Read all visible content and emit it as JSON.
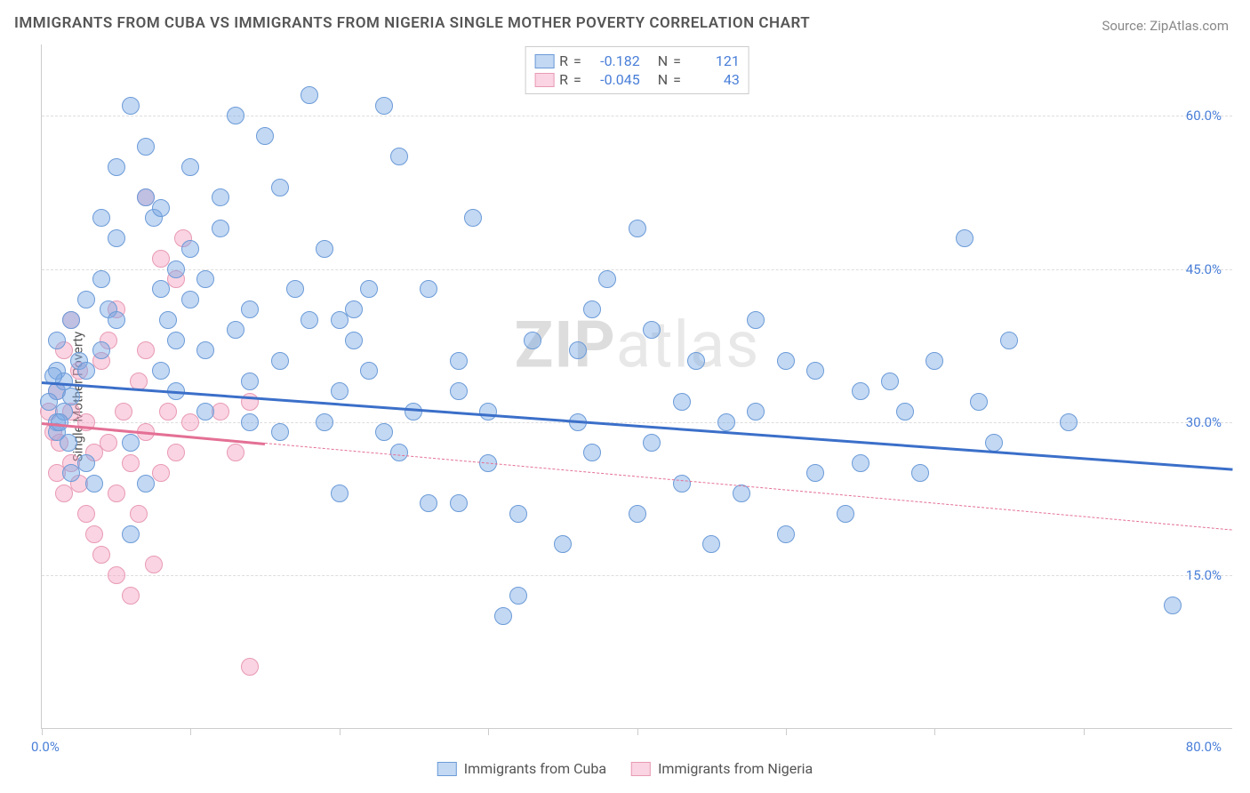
{
  "title": "IMMIGRANTS FROM CUBA VS IMMIGRANTS FROM NIGERIA SINGLE MOTHER POVERTY CORRELATION CHART",
  "source_label": "Source:",
  "source_name": "ZipAtlas.com",
  "ylabel": "Single Mother Poverty",
  "watermark_a": "ZIP",
  "watermark_b": "atlas",
  "chart": {
    "type": "scatter",
    "xlim": [
      0,
      80
    ],
    "ylim": [
      0,
      67
    ],
    "y_ticks": [
      15,
      30,
      45,
      60
    ],
    "y_tick_labels": [
      "15.0%",
      "30.0%",
      "45.0%",
      "60.0%"
    ],
    "x_ticks": [
      0,
      10,
      20,
      30,
      40,
      50,
      60,
      70
    ],
    "x_min_label": "0.0%",
    "x_max_label": "80.0%",
    "background_color": "#ffffff",
    "grid_color": "#e0e0e0",
    "axis_color": "#cccccc",
    "tick_label_color": "#4a7fd8",
    "title_color": "#555555",
    "title_fontsize": 17,
    "label_fontsize": 15,
    "point_radius": 10,
    "series": {
      "cuba": {
        "label": "Immigrants from Cuba",
        "fill_color": "rgba(122,168,228,0.45)",
        "stroke_color": "#6b9bd8",
        "trend_color": "#3b6fc9",
        "trend_solid": {
          "x1": 0,
          "y1": 34,
          "x2": 80,
          "y2": 25.5
        },
        "R": "-0.182",
        "N": "121",
        "points": [
          [
            1,
            33
          ],
          [
            1,
            35
          ],
          [
            1,
            30
          ],
          [
            0.5,
            32
          ],
          [
            1,
            29
          ],
          [
            1.5,
            31
          ],
          [
            2,
            32.5
          ],
          [
            1.5,
            34
          ],
          [
            1,
            38
          ],
          [
            2,
            40
          ],
          [
            2.5,
            36
          ],
          [
            3,
            42
          ],
          [
            2,
            25
          ],
          [
            3,
            26
          ],
          [
            3.5,
            24
          ],
          [
            4,
            37
          ],
          [
            4.5,
            41
          ],
          [
            4,
            50
          ],
          [
            5,
            48
          ],
          [
            5,
            55
          ],
          [
            6,
            61
          ],
          [
            7,
            52
          ],
          [
            7.5,
            50
          ],
          [
            7,
            57
          ],
          [
            8,
            43
          ],
          [
            8.5,
            40
          ],
          [
            8,
            51
          ],
          [
            9,
            38
          ],
          [
            9,
            45
          ],
          [
            10,
            42
          ],
          [
            10,
            47
          ],
          [
            10,
            55
          ],
          [
            11,
            31
          ],
          [
            11,
            37
          ],
          [
            11,
            44
          ],
          [
            12,
            49
          ],
          [
            13,
            60
          ],
          [
            14,
            30
          ],
          [
            14,
            34
          ],
          [
            14,
            41
          ],
          [
            15,
            58
          ],
          [
            16,
            29
          ],
          [
            16,
            36
          ],
          [
            17,
            43
          ],
          [
            18,
            62
          ],
          [
            18,
            40
          ],
          [
            19,
            30
          ],
          [
            20,
            40
          ],
          [
            20,
            33
          ],
          [
            21,
            38
          ],
          [
            21,
            41
          ],
          [
            22,
            35
          ],
          [
            22,
            43
          ],
          [
            23,
            29
          ],
          [
            23,
            61
          ],
          [
            24,
            56
          ],
          [
            25,
            31
          ],
          [
            26,
            22
          ],
          [
            26,
            43
          ],
          [
            28,
            22
          ],
          [
            28,
            33
          ],
          [
            28,
            36
          ],
          [
            29,
            50
          ],
          [
            30,
            31
          ],
          [
            30,
            26
          ],
          [
            31,
            11
          ],
          [
            32,
            13
          ],
          [
            32,
            21
          ],
          [
            33,
            38
          ],
          [
            35,
            18
          ],
          [
            36,
            30
          ],
          [
            36,
            37
          ],
          [
            37,
            41
          ],
          [
            37,
            27
          ],
          [
            38,
            44
          ],
          [
            40,
            49
          ],
          [
            40,
            21
          ],
          [
            41,
            28
          ],
          [
            41,
            39
          ],
          [
            43,
            32
          ],
          [
            43,
            24
          ],
          [
            44,
            36
          ],
          [
            45,
            18
          ],
          [
            46,
            30
          ],
          [
            47,
            23
          ],
          [
            48,
            31
          ],
          [
            48,
            40
          ],
          [
            50,
            36
          ],
          [
            50,
            19
          ],
          [
            52,
            25
          ],
          [
            52,
            35
          ],
          [
            54,
            21
          ],
          [
            55,
            33
          ],
          [
            55,
            26
          ],
          [
            57,
            34
          ],
          [
            58,
            31
          ],
          [
            59,
            25
          ],
          [
            60,
            36
          ],
          [
            62,
            48
          ],
          [
            63,
            32
          ],
          [
            64,
            28
          ],
          [
            65,
            38
          ],
          [
            69,
            30
          ],
          [
            76,
            12
          ],
          [
            4,
            44
          ],
          [
            6,
            28
          ],
          [
            6,
            19
          ],
          [
            7,
            24
          ],
          [
            8,
            35
          ],
          [
            9,
            33
          ],
          [
            0.8,
            34.5
          ],
          [
            1.2,
            30
          ],
          [
            1.8,
            28
          ],
          [
            12,
            52
          ],
          [
            16,
            53
          ],
          [
            19,
            47
          ],
          [
            20,
            23
          ],
          [
            24,
            27
          ],
          [
            13,
            39
          ],
          [
            5,
            40
          ],
          [
            3,
            35
          ]
        ]
      },
      "nigeria": {
        "label": "Immigrants from Nigeria",
        "fill_color": "rgba(244,160,190,0.45)",
        "stroke_color": "#e89ab5",
        "trend_color": "#e47095",
        "trend_solid": {
          "x1": 0,
          "y1": 30,
          "x2": 15,
          "y2": 28
        },
        "trend_dash": {
          "x1": 15,
          "y1": 28,
          "x2": 80,
          "y2": 19.5
        },
        "R": "-0.045",
        "N": "43",
        "points": [
          [
            0.5,
            31
          ],
          [
            0.8,
            29
          ],
          [
            1,
            33
          ],
          [
            1,
            25
          ],
          [
            1.2,
            28
          ],
          [
            1.5,
            37
          ],
          [
            1.5,
            23
          ],
          [
            2,
            40
          ],
          [
            2,
            31
          ],
          [
            2,
            26
          ],
          [
            2.5,
            24
          ],
          [
            2.5,
            35
          ],
          [
            3,
            21
          ],
          [
            3,
            30
          ],
          [
            3.5,
            19
          ],
          [
            3.5,
            27
          ],
          [
            4,
            17
          ],
          [
            4,
            36
          ],
          [
            4.5,
            38
          ],
          [
            4.5,
            28
          ],
          [
            5,
            15
          ],
          [
            5,
            23
          ],
          [
            5,
            41
          ],
          [
            5.5,
            31
          ],
          [
            6,
            26
          ],
          [
            6,
            13
          ],
          [
            6.5,
            34
          ],
          [
            6.5,
            21
          ],
          [
            7,
            29
          ],
          [
            7,
            37
          ],
          [
            7.5,
            16
          ],
          [
            8,
            46
          ],
          [
            8,
            25
          ],
          [
            8.5,
            31
          ],
          [
            9,
            44
          ],
          [
            9,
            27
          ],
          [
            9.5,
            48
          ],
          [
            10,
            30
          ],
          [
            12,
            31
          ],
          [
            13,
            27
          ],
          [
            14,
            32
          ],
          [
            14,
            6
          ],
          [
            7,
            52
          ]
        ]
      }
    },
    "legend_top": {
      "r_label": "R",
      "n_label": "N",
      "eq": " = "
    }
  }
}
